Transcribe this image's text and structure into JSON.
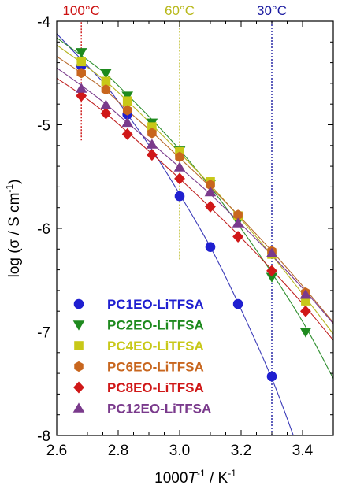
{
  "chart_data": {
    "type": "scatter",
    "xlabel": {
      "prefix": "1000",
      "var": "T",
      "sup": "-1",
      "unit": " / K",
      "unit_sup": "-1"
    },
    "ylabel": {
      "text": "log (σ / S cm",
      "sup": "-1",
      "suffix": ")"
    },
    "xlim": [
      2.6,
      3.5
    ],
    "ylim": [
      -8,
      -4
    ],
    "x_ticks": [
      2.6,
      2.8,
      3.0,
      3.2,
      3.4
    ],
    "x_tick_labels": [
      "2.6",
      "2.8",
      "3.0",
      "3.2",
      "3.4"
    ],
    "y_ticks": [
      -8,
      -7,
      -6,
      -5,
      -4
    ],
    "y_tick_labels": [
      "-8",
      "-7",
      "-6",
      "-5",
      "-4"
    ],
    "legend": "lower-left",
    "grid": false,
    "reference_lines": [
      {
        "label": "100°C",
        "x": 2.68,
        "color": "#cc1111",
        "y_from": -5.15,
        "y_to": -4.0
      },
      {
        "label": "60°C",
        "x": 3.0,
        "color": "#b8b81a",
        "y_from": -6.3,
        "y_to": -4.0
      },
      {
        "label": "30°C",
        "x": 3.3,
        "color": "#1a1aa0",
        "y_from": -8.0,
        "y_to": -4.0
      }
    ],
    "series": [
      {
        "name": "PC1EO-LiTFSA",
        "color": "#1f1fd0",
        "line_color": "#3a3ab8",
        "marker": "circle",
        "x": [
          2.68,
          2.83,
          3.0,
          3.1,
          3.19,
          3.3
        ],
        "y": [
          -4.43,
          -4.9,
          -5.69,
          -6.18,
          -6.73,
          -7.43
        ],
        "fit": [
          [
            2.6,
            -4.12
          ],
          [
            2.68,
            -4.37
          ],
          [
            2.76,
            -4.62
          ],
          [
            2.83,
            -4.9
          ],
          [
            2.91,
            -5.24
          ],
          [
            3.0,
            -5.67
          ],
          [
            3.1,
            -6.18
          ],
          [
            3.19,
            -6.72
          ],
          [
            3.3,
            -7.45
          ],
          [
            3.37,
            -8.0
          ]
        ]
      },
      {
        "name": "PC2EO-LiTFSA",
        "color": "#1e8a1e",
        "line_color": "#2f8f2f",
        "marker": "triangle-down",
        "x": [
          2.68,
          2.76,
          2.83,
          2.91,
          3.0,
          3.1,
          3.19,
          3.3,
          3.41
        ],
        "y": [
          -4.3,
          -4.5,
          -4.72,
          -4.98,
          -5.25,
          -5.57,
          -5.93,
          -6.47,
          -7.0
        ],
        "fit": [
          [
            2.6,
            -4.16
          ],
          [
            2.68,
            -4.33
          ],
          [
            2.76,
            -4.51
          ],
          [
            2.83,
            -4.71
          ],
          [
            2.91,
            -4.95
          ],
          [
            3.0,
            -5.24
          ],
          [
            3.1,
            -5.6
          ],
          [
            3.19,
            -5.96
          ],
          [
            3.3,
            -6.43
          ],
          [
            3.41,
            -6.95
          ],
          [
            3.5,
            -7.45
          ]
        ]
      },
      {
        "name": "PC4EO-LiTFSA",
        "color": "#c8c818",
        "line_color": "#b5b521",
        "marker": "square",
        "x": [
          2.68,
          2.76,
          2.83,
          2.91,
          3.0,
          3.1,
          3.19,
          3.3,
          3.41
        ],
        "y": [
          -4.39,
          -4.58,
          -4.77,
          -5.02,
          -5.26,
          -5.55,
          -5.88,
          -6.25,
          -6.7
        ],
        "fit": [
          [
            2.6,
            -4.23
          ],
          [
            2.68,
            -4.4
          ],
          [
            2.76,
            -4.58
          ],
          [
            2.83,
            -4.77
          ],
          [
            2.91,
            -5.0
          ],
          [
            3.0,
            -5.27
          ],
          [
            3.1,
            -5.58
          ],
          [
            3.19,
            -5.88
          ],
          [
            3.3,
            -6.26
          ],
          [
            3.41,
            -6.67
          ],
          [
            3.5,
            -7.02
          ]
        ]
      },
      {
        "name": "PC6EO-LiTFSA",
        "color": "#c8661e",
        "line_color": "#b86a2c",
        "marker": "hexagon",
        "x": [
          2.68,
          2.76,
          2.83,
          2.91,
          3.0,
          3.1,
          3.19,
          3.3,
          3.41
        ],
        "y": [
          -4.5,
          -4.66,
          -4.86,
          -5.08,
          -5.31,
          -5.58,
          -5.87,
          -6.22,
          -6.62
        ],
        "fit": [
          [
            2.6,
            -4.34
          ],
          [
            2.68,
            -4.5
          ],
          [
            2.76,
            -4.67
          ],
          [
            2.83,
            -4.86
          ],
          [
            2.91,
            -5.07
          ],
          [
            3.0,
            -5.32
          ],
          [
            3.1,
            -5.6
          ],
          [
            3.19,
            -5.87
          ],
          [
            3.3,
            -6.22
          ],
          [
            3.41,
            -6.59
          ],
          [
            3.5,
            -6.91
          ]
        ]
      },
      {
        "name": "PC8EO-LiTFSA",
        "color": "#d01818",
        "line_color": "#c02020",
        "marker": "diamond",
        "x": [
          2.68,
          2.76,
          2.83,
          2.91,
          3.0,
          3.1,
          3.19,
          3.3,
          3.41
        ],
        "y": [
          -4.72,
          -4.89,
          -5.09,
          -5.29,
          -5.52,
          -5.79,
          -6.08,
          -6.41,
          -6.8
        ],
        "fit": [
          [
            2.6,
            -4.55
          ],
          [
            2.68,
            -4.71
          ],
          [
            2.76,
            -4.89
          ],
          [
            2.83,
            -5.07
          ],
          [
            2.91,
            -5.28
          ],
          [
            3.0,
            -5.52
          ],
          [
            3.1,
            -5.8
          ],
          [
            3.19,
            -6.06
          ],
          [
            3.3,
            -6.4
          ],
          [
            3.41,
            -6.76
          ],
          [
            3.5,
            -7.08
          ]
        ]
      },
      {
        "name": "PC12EO-LiTFSA",
        "color": "#7a3a8c",
        "line_color": "#7a3a8c",
        "marker": "triangle-up",
        "x": [
          2.68,
          2.76,
          2.83,
          2.91,
          3.0,
          3.1,
          3.19,
          3.3,
          3.41
        ],
        "y": [
          -4.65,
          -4.81,
          -4.98,
          -5.19,
          -5.41,
          -5.65,
          -5.95,
          -6.24,
          -6.64
        ],
        "fit": [
          [
            2.6,
            -4.45
          ],
          [
            2.68,
            -4.62
          ],
          [
            2.76,
            -4.8
          ],
          [
            2.83,
            -4.98
          ],
          [
            2.91,
            -5.18
          ],
          [
            3.0,
            -5.41
          ],
          [
            3.1,
            -5.67
          ],
          [
            3.19,
            -5.93
          ],
          [
            3.3,
            -6.26
          ],
          [
            3.41,
            -6.61
          ],
          [
            3.5,
            -6.92
          ]
        ]
      }
    ]
  }
}
